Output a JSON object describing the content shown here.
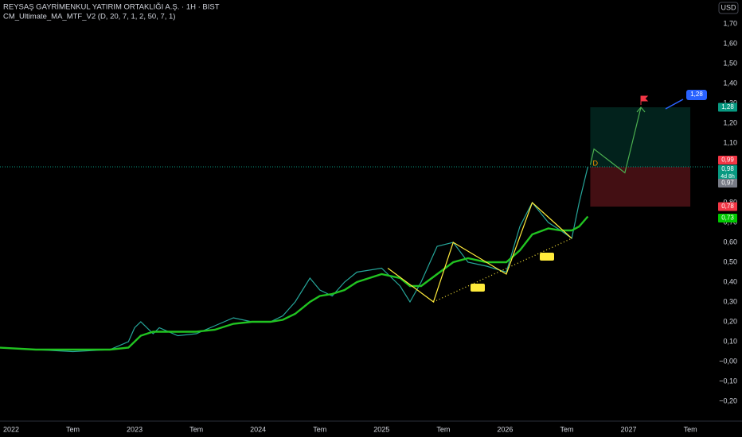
{
  "header": {
    "title": "REYSAŞ GAYRİMENKUL YATIRIM ORTAKLIĞI A.Ş. · 1H · BIST",
    "indicator": "CM_Ultimate_MA_MTF_V2 (D, 20, 7, 1, 2, 50, 7, 1)",
    "currency": "USD"
  },
  "chart_data": {
    "type": "line",
    "x": [
      2021.9,
      2022.2,
      2022.5,
      2022.8,
      2022.95,
      2023.0,
      2023.05,
      2023.15,
      2023.2,
      2023.35,
      2023.5,
      2023.65,
      2023.8,
      2023.95,
      2024.1,
      2024.2,
      2024.3,
      2024.42,
      2024.5,
      2024.6,
      2024.7,
      2024.8,
      2025.0,
      2025.15,
      2025.23,
      2025.32,
      2025.45,
      2025.58,
      2025.7,
      2025.85,
      2026.01,
      2026.12,
      2026.22,
      2026.35,
      2026.45,
      2026.54,
      2026.6,
      2026.67
    ],
    "series": [
      {
        "name": "Price",
        "color": "#26a69a",
        "values": [
          0.07,
          0.06,
          0.05,
          0.06,
          0.1,
          0.17,
          0.2,
          0.14,
          0.17,
          0.13,
          0.14,
          0.18,
          0.22,
          0.2,
          0.2,
          0.23,
          0.3,
          0.42,
          0.36,
          0.33,
          0.4,
          0.45,
          0.47,
          0.38,
          0.3,
          0.4,
          0.58,
          0.6,
          0.5,
          0.48,
          0.45,
          0.68,
          0.8,
          0.7,
          0.66,
          0.62,
          0.8,
          0.98
        ]
      },
      {
        "name": "MA",
        "color": "#21c321",
        "values": [
          0.07,
          0.06,
          0.06,
          0.06,
          0.07,
          0.1,
          0.13,
          0.15,
          0.15,
          0.15,
          0.15,
          0.16,
          0.19,
          0.2,
          0.2,
          0.21,
          0.24,
          0.3,
          0.33,
          0.34,
          0.36,
          0.4,
          0.44,
          0.42,
          0.38,
          0.38,
          0.44,
          0.5,
          0.52,
          0.5,
          0.5,
          0.56,
          0.64,
          0.67,
          0.66,
          0.66,
          0.68,
          0.73
        ]
      }
    ],
    "xlim": [
      2021.91,
      2027.68
    ],
    "xticks": [
      2022,
      {
        "value": 2022.5,
        "label": "Tem"
      },
      2023,
      {
        "value": 2023.5,
        "label": "Tem"
      },
      2024,
      {
        "value": 2024.5,
        "label": "Tem"
      },
      2025,
      {
        "value": 2025.5,
        "label": "Tem"
      },
      2026,
      {
        "value": 2026.5,
        "label": "Tem"
      },
      2027,
      {
        "value": 2027.5,
        "label": "Tem"
      }
    ],
    "ylim": [
      -0.3,
      1.82
    ],
    "yticks": [
      {
        "value": -0.2,
        "label": "−0,20"
      },
      {
        "value": -0.1,
        "label": "−0,10"
      },
      {
        "value": 0,
        "label": "−0,00"
      },
      {
        "value": 0.1,
        "label": "0,10"
      },
      {
        "value": 0.2,
        "label": "0,20"
      },
      {
        "value": 0.3,
        "label": "0,30"
      },
      {
        "value": 0.4,
        "label": "0,40"
      },
      {
        "value": 0.5,
        "label": "0,50"
      },
      {
        "value": 0.6,
        "label": "0,60"
      },
      {
        "value": 0.7,
        "label": "0,70"
      },
      {
        "value": 0.8,
        "label": "0,80"
      },
      {
        "value": 1.1,
        "label": "1,10"
      },
      {
        "value": 1.2,
        "label": "1,20"
      },
      {
        "value": 1.3,
        "label": "1,30"
      },
      {
        "value": 1.4,
        "label": "1,40"
      },
      {
        "value": 1.5,
        "label": "1,50"
      },
      {
        "value": 1.6,
        "label": "1,60"
      },
      {
        "value": 1.7,
        "label": "1,70"
      }
    ],
    "zigzag": {
      "color": "#ffeb3b",
      "x": [
        2025.05,
        2025.42,
        2025.58,
        2026.01,
        2026.22,
        2026.54
      ],
      "values": [
        0.47,
        0.3,
        0.6,
        0.44,
        0.8,
        0.62
      ]
    },
    "trendline": {
      "color": "#ffeb3b",
      "x": [
        2025.42,
        2026.54
      ],
      "values": [
        0.3,
        0.62
      ]
    },
    "projection": {
      "color": "#4caf50",
      "x": [
        2026.69,
        2026.72,
        2026.97,
        2027.1
      ],
      "values": [
        0.99,
        1.07,
        0.95,
        1.28
      ]
    },
    "position": {
      "x": [
        2026.69,
        2027.5
      ],
      "entry": 0.98,
      "target": 1.28,
      "stop": 0.78
    },
    "marker_letter": "D",
    "axis_labels": [
      {
        "value": 1.28,
        "label": "1,28",
        "color": "#089981"
      },
      {
        "value": 0.99,
        "label": "0,99",
        "color": "#f23645"
      },
      {
        "value": 0.98,
        "label": "0,98",
        "color": "#089981",
        "note": "4d 8h"
      },
      {
        "value": 0.97,
        "label": "0,97",
        "color": "#787b86"
      },
      {
        "value": 0.78,
        "label": "0,78",
        "color": "#f23645"
      },
      {
        "value": 0.73,
        "label": "0,73",
        "color": "#00c800"
      }
    ],
    "callout": {
      "value": 1.28,
      "label": "1,28",
      "color": "#2962ff"
    }
  }
}
